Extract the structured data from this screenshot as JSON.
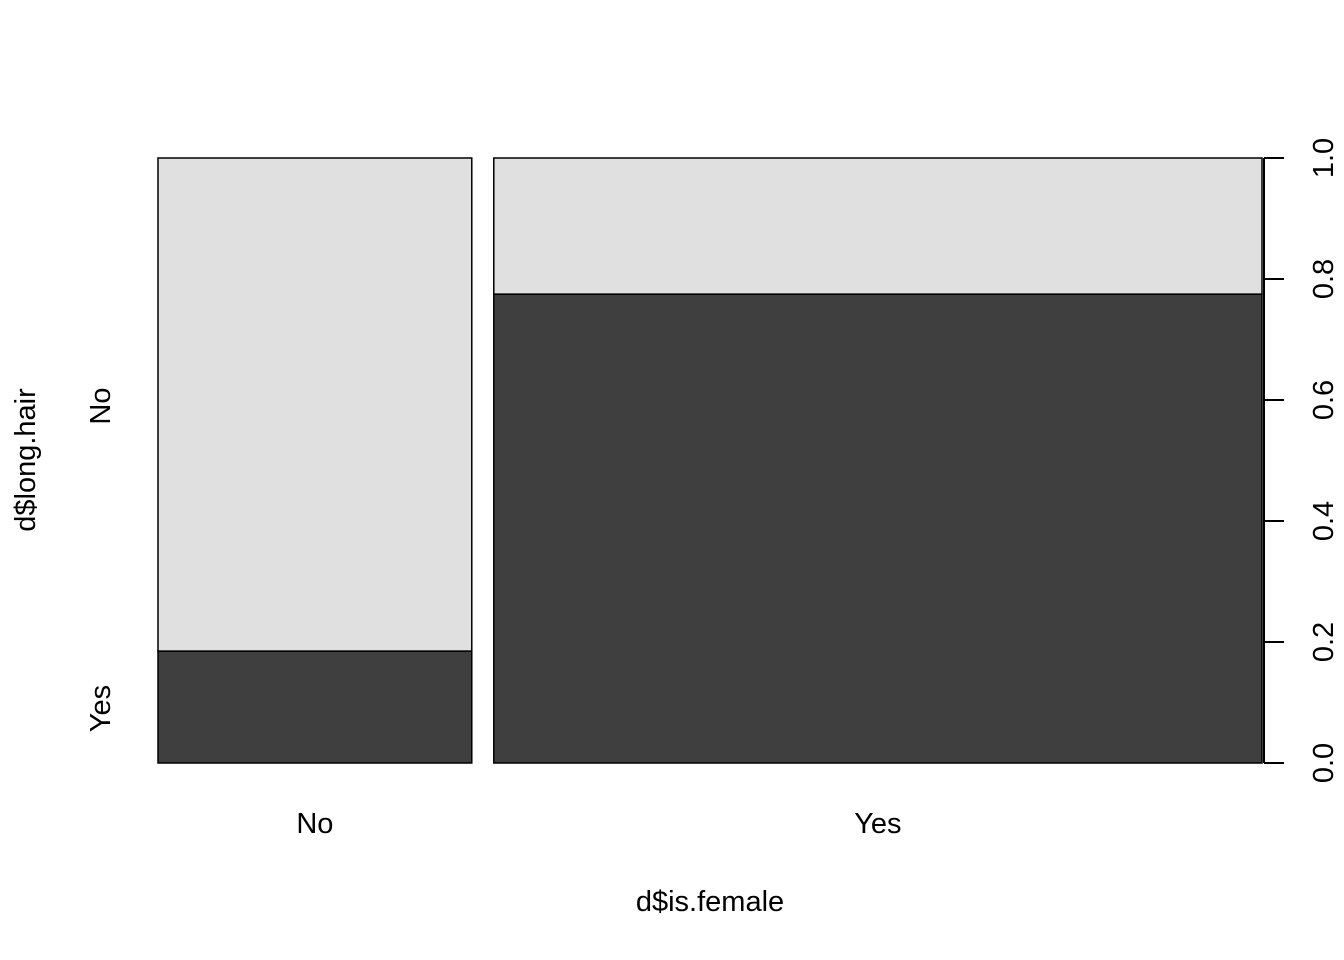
{
  "chart_data": {
    "type": "spineplot",
    "title": "",
    "xlabel": "d$is.female",
    "ylabel": "d$long.hair",
    "x_categories": [
      "No",
      "Yes"
    ],
    "x_widths": [
      0.29,
      0.71
    ],
    "y_levels": [
      "Yes",
      "No"
    ],
    "y_level_label_positions": [
      0.09,
      0.59
    ],
    "series": [
      {
        "name": "Yes",
        "values": [
          0.185,
          0.775
        ]
      },
      {
        "name": "No",
        "values": [
          0.815,
          0.225
        ]
      }
    ],
    "right_axis": {
      "ticks": [
        "0.0",
        "0.2",
        "0.4",
        "0.6",
        "0.8",
        "1.0"
      ],
      "range": [
        0,
        1
      ]
    },
    "colors": {
      "Yes": "#3f3f3f",
      "No": "#e0e0e0"
    },
    "grid": false,
    "legend": "none"
  }
}
